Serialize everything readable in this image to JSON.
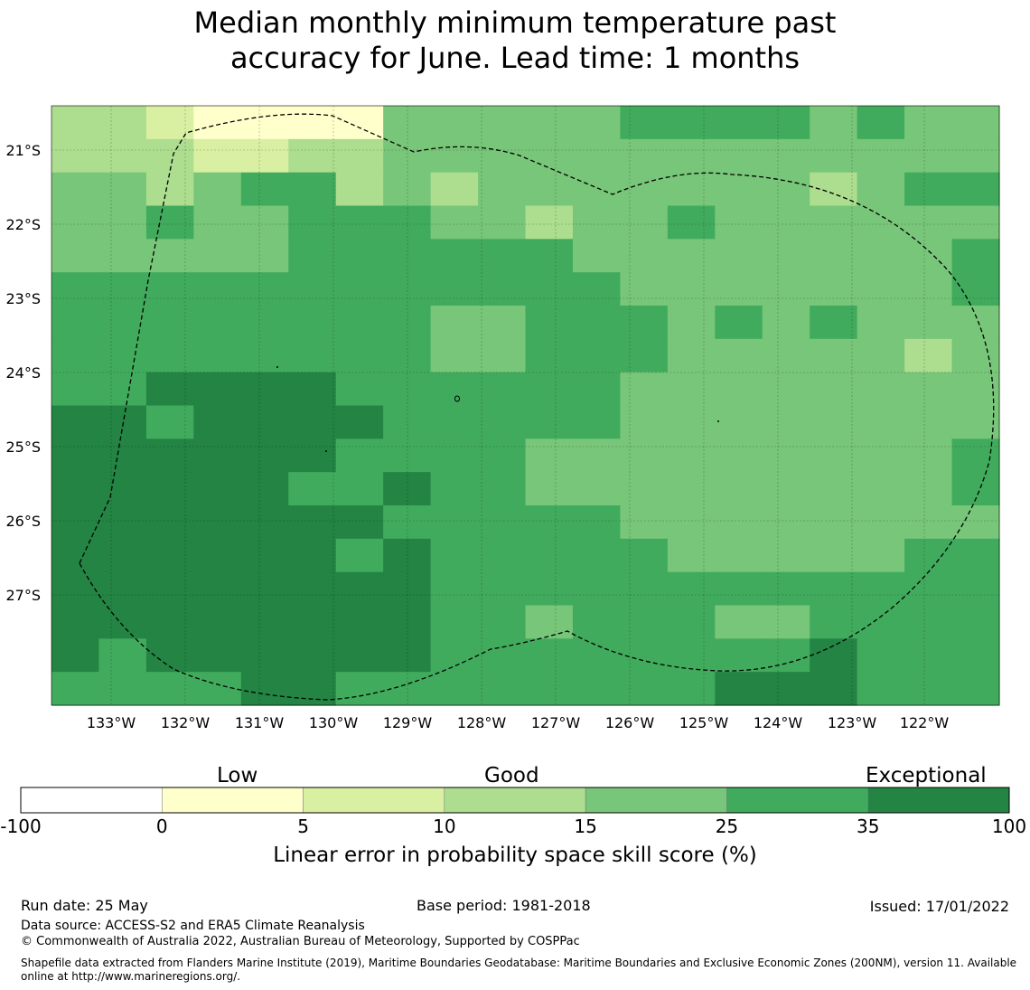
{
  "title": {
    "line1": "Median monthly minimum temperature past",
    "line2": "accuracy for June. Lead time: 1 months"
  },
  "map": {
    "lon_labels": [
      "133°W",
      "132°W",
      "131°W",
      "130°W",
      "129°W",
      "128°W",
      "127°W",
      "126°W",
      "125°W",
      "124°W",
      "123°W",
      "122°W"
    ],
    "lat_labels": [
      "21°S",
      "22°S",
      "23°S",
      "24°S",
      "25°S",
      "26°S",
      "27°S"
    ],
    "colors": [
      "#ffffff",
      "#ffffcc",
      "#d9f0a3",
      "#addd8e",
      "#78c679",
      "#41ab5d",
      "#238443"
    ],
    "grid": [
      "33211114444455554544",
      "33322334444444444444",
      "44345534344444443455",
      "44544555443445444444",
      "44444555555444444445",
      "55555555555544444445",
      "55555555445554545444",
      "55555555445554444434",
      "55666655555544444444",
      "66566665555544444444",
      "66666655554444444445",
      "66666556554444444445",
      "66666665555544444444",
      "66666656555554444455",
      "66666666555555555555",
      "66666666554555445555",
      "65666666555555556555",
      "55556655555555666555"
    ]
  },
  "colorbar": {
    "category_labels": [
      "Low",
      "Good",
      "Exceptional"
    ],
    "ticks": [
      "-100",
      "0",
      "5",
      "10",
      "15",
      "25",
      "35",
      "100"
    ],
    "colors": [
      "#ffffff",
      "#ffffcc",
      "#d9f0a3",
      "#addd8e",
      "#78c679",
      "#41ab5d",
      "#238443"
    ],
    "title": "Linear error in probability space skill score (%)"
  },
  "footer": {
    "run_date": "Run date: 25 May",
    "base_period": "Base period: 1981-2018",
    "issued": "Issued: 17/01/2022",
    "data_source": "Data source: ACCESS-S2 and ERA5 Climate Reanalysis",
    "copyright": "© Commonwealth of Australia 2022, Australian Bureau of Meteorology, Supported by COSPPac",
    "shapefile_line1": "Shapefile data extracted from Flanders Marine Institute (2019), Maritime Boundaries Geodatabase: Maritime Boundaries and Exclusive Economic Zones (200NM), version 11. Available",
    "shapefile_line2": "online at http://www.marineregions.org/."
  }
}
